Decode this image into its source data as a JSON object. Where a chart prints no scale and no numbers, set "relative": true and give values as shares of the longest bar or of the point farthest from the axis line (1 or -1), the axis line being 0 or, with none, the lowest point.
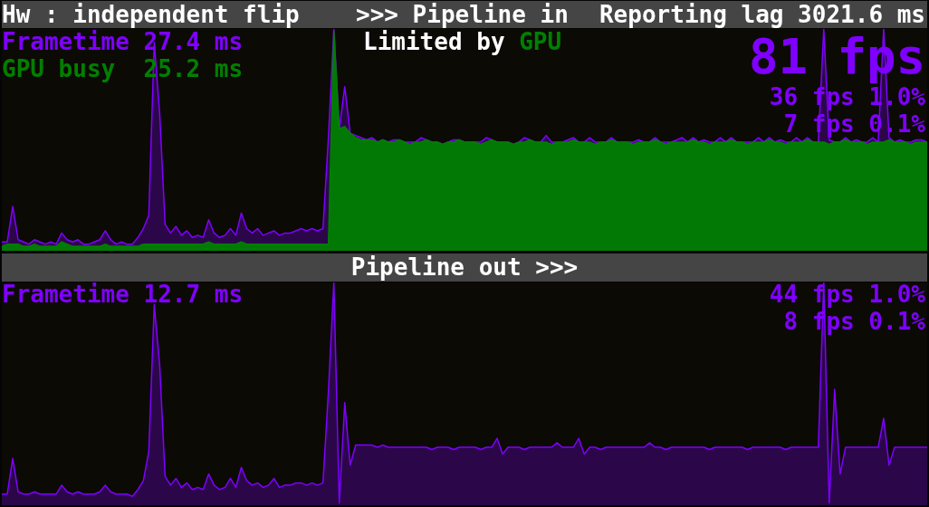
{
  "chart_data": [
    {
      "type": "area",
      "title": ">>> Pipeline in",
      "annotations": [
        "Hw : independent flip",
        "Reporting lag 3021.6 ms",
        "Frametime 27.4 ms",
        "GPU busy  25.2 ms",
        "Limited by GPU",
        "81 fps",
        "36 fps 1.0%",
        "7 fps 0.1%"
      ],
      "relative": true,
      "tick_labels": false,
      "categories": [
        null,
        null,
        null,
        null,
        null,
        null,
        null,
        null,
        null,
        null,
        null,
        null,
        null,
        null,
        null,
        null,
        null,
        null,
        null,
        null,
        null,
        null,
        null,
        null,
        null,
        null,
        null,
        null,
        null,
        null,
        null,
        null,
        null,
        null,
        null,
        null,
        null,
        null,
        null,
        null,
        null,
        null,
        null,
        null,
        null,
        null,
        null,
        null,
        null,
        null,
        null,
        null,
        null,
        null,
        null,
        null,
        null,
        null,
        null,
        null,
        null,
        null,
        null,
        null,
        null,
        null,
        null,
        null,
        null,
        null,
        null,
        null,
        null,
        null,
        null,
        null,
        null,
        null,
        null,
        null,
        null,
        null,
        null,
        null,
        null,
        null,
        null,
        null,
        null,
        null,
        null,
        null,
        null,
        null,
        null,
        null,
        null,
        null,
        null,
        null,
        null,
        null,
        null,
        null,
        null,
        null,
        null,
        null,
        null,
        null,
        null,
        null,
        null,
        null,
        null,
        null,
        null,
        null,
        null,
        null,
        null,
        null,
        null,
        null,
        null,
        null,
        null,
        null,
        null,
        null,
        null,
        null,
        null,
        null,
        null,
        null,
        null,
        null,
        null,
        null,
        null,
        null,
        null,
        null,
        null,
        null,
        null,
        null,
        null,
        null,
        null,
        null,
        null,
        null,
        null,
        null,
        null,
        null,
        null,
        null,
        null,
        null,
        null,
        null,
        null,
        null,
        null,
        null,
        null,
        null,
        null
      ],
      "series": [
        {
          "color": "#7f00ff",
          "values": [
            0.04,
            0.04,
            0.2,
            0.05,
            0.04,
            0.03,
            0.05,
            0.04,
            0.03,
            0.04,
            0.03,
            0.08,
            0.05,
            0.04,
            0.05,
            0.03,
            0.03,
            0.04,
            0.05,
            0.09,
            0.05,
            0.03,
            0.04,
            0.03,
            0.03,
            0.06,
            0.1,
            0.16,
            0.94,
            0.62,
            0.12,
            0.08,
            0.11,
            0.07,
            0.09,
            0.06,
            0.07,
            0.06,
            0.14,
            0.08,
            0.06,
            0.07,
            0.1,
            0.07,
            0.17,
            0.1,
            0.08,
            0.1,
            0.07,
            0.08,
            0.09,
            0.07,
            0.08,
            0.08,
            0.09,
            0.1,
            0.09,
            0.1,
            0.09,
            0.1,
            0.51,
            1,
            0.55,
            0.74,
            0.53,
            0.52,
            0.51,
            0.5,
            0.51,
            0.49,
            0.5,
            0.49,
            0.5,
            0.5,
            0.49,
            0.49,
            0.49,
            0.51,
            0.5,
            0.49,
            0.49,
            0.48,
            0.49,
            0.5,
            0.5,
            0.49,
            0.49,
            0.49,
            0.49,
            0.51,
            0.5,
            0.49,
            0.49,
            0.49,
            0.48,
            0.49,
            0.51,
            0.5,
            0.49,
            0.49,
            0.52,
            0.49,
            0.49,
            0.49,
            0.5,
            0.51,
            0.49,
            0.49,
            0.51,
            0.49,
            0.49,
            0.49,
            0.51,
            0.49,
            0.49,
            0.49,
            0.49,
            0.5,
            0.49,
            0.49,
            0.51,
            0.49,
            0.49,
            0.49,
            0.5,
            0.51,
            0.49,
            0.51,
            0.49,
            0.5,
            0.49,
            0.49,
            0.51,
            0.49,
            0.51,
            0.49,
            0.49,
            0.49,
            0.49,
            0.51,
            0.49,
            0.51,
            0.49,
            0.5,
            0.49,
            0.49,
            0.51,
            0.49,
            0.51,
            0.49,
            0.49,
            1,
            0.5,
            0.49,
            0.49,
            0.51,
            0.49,
            0.5,
            0.49,
            0.49,
            0.51,
            0.49,
            1,
            0.51,
            0.49,
            0.5,
            0.49,
            0.49,
            0.5,
            0.5,
            0.49
          ]
        },
        {
          "color": "#008000",
          "values": [
            0.02,
            0.03,
            0.03,
            0.03,
            0.02,
            0.02,
            0.03,
            0.02,
            0.02,
            0.02,
            0.02,
            0.04,
            0.03,
            0.02,
            0.02,
            0.02,
            0.02,
            0.02,
            0.02,
            0.03,
            0.02,
            0.02,
            0.02,
            0.02,
            0.02,
            0.02,
            0.03,
            0.03,
            0.03,
            0.03,
            0.03,
            0.03,
            0.03,
            0.03,
            0.03,
            0.03,
            0.03,
            0.03,
            0.04,
            0.03,
            0.03,
            0.03,
            0.03,
            0.03,
            0.04,
            0.03,
            0.03,
            0.03,
            0.03,
            0.03,
            0.03,
            0.03,
            0.03,
            0.03,
            0.03,
            0.03,
            0.03,
            0.03,
            0.03,
            0.03,
            0.03,
            0.99,
            0.55,
            0.56,
            0.53,
            0.51,
            0.5,
            0.5,
            0.5,
            0.49,
            0.5,
            0.49,
            0.49,
            0.5,
            0.49,
            0.48,
            0.49,
            0.49,
            0.5,
            0.49,
            0.49,
            0.48,
            0.49,
            0.49,
            0.5,
            0.49,
            0.49,
            0.49,
            0.48,
            0.49,
            0.5,
            0.49,
            0.49,
            0.49,
            0.48,
            0.49,
            0.49,
            0.5,
            0.49,
            0.49,
            0.49,
            0.48,
            0.49,
            0.49,
            0.49,
            0.5,
            0.49,
            0.49,
            0.49,
            0.48,
            0.49,
            0.49,
            0.5,
            0.49,
            0.49,
            0.49,
            0.48,
            0.49,
            0.49,
            0.49,
            0.5,
            0.49,
            0.48,
            0.49,
            0.49,
            0.49,
            0.49,
            0.5,
            0.49,
            0.49,
            0.48,
            0.49,
            0.49,
            0.49,
            0.5,
            0.49,
            0.49,
            0.48,
            0.49,
            0.49,
            0.49,
            0.5,
            0.49,
            0.49,
            0.48,
            0.49,
            0.49,
            0.49,
            0.5,
            0.49,
            0.49,
            0.49,
            0.48,
            0.49,
            0.49,
            0.5,
            0.49,
            0.49,
            0.49,
            0.48,
            0.49,
            0.49,
            0.49,
            0.5,
            0.49,
            0.49,
            0.49,
            0.48,
            0.49,
            0.49,
            0.49
          ]
        }
      ]
    },
    {
      "type": "area",
      "title": "Pipeline out >>>",
      "annotations": [
        "Frametime 12.7 ms",
        "44 fps 1.0%",
        "8 fps 0.1%"
      ],
      "relative": true,
      "tick_labels": false,
      "categories": [
        null,
        null,
        null,
        null,
        null,
        null,
        null,
        null,
        null,
        null,
        null,
        null,
        null,
        null,
        null,
        null,
        null,
        null,
        null,
        null,
        null,
        null,
        null,
        null,
        null,
        null,
        null,
        null,
        null,
        null,
        null,
        null,
        null,
        null,
        null,
        null,
        null,
        null,
        null,
        null,
        null,
        null,
        null,
        null,
        null,
        null,
        null,
        null,
        null,
        null,
        null,
        null,
        null,
        null,
        null,
        null,
        null,
        null,
        null,
        null,
        null,
        null,
        null,
        null,
        null,
        null,
        null,
        null,
        null,
        null,
        null,
        null,
        null,
        null,
        null,
        null,
        null,
        null,
        null,
        null,
        null,
        null,
        null,
        null,
        null,
        null,
        null,
        null,
        null,
        null,
        null,
        null,
        null,
        null,
        null,
        null,
        null,
        null,
        null,
        null,
        null,
        null,
        null,
        null,
        null,
        null,
        null,
        null,
        null,
        null,
        null,
        null,
        null,
        null,
        null,
        null,
        null,
        null,
        null,
        null,
        null,
        null,
        null,
        null,
        null,
        null,
        null,
        null,
        null,
        null,
        null,
        null,
        null,
        null,
        null,
        null,
        null,
        null,
        null,
        null,
        null,
        null,
        null,
        null,
        null,
        null,
        null,
        null,
        null,
        null,
        null,
        null,
        null,
        null,
        null,
        null,
        null,
        null,
        null,
        null,
        null,
        null,
        null,
        null,
        null,
        null,
        null,
        null,
        null,
        null,
        null
      ],
      "series": [
        {
          "color": "#7f00ff",
          "values": [
            0.05,
            0.05,
            0.21,
            0.06,
            0.05,
            0.05,
            0.06,
            0.05,
            0.05,
            0.05,
            0.05,
            0.09,
            0.06,
            0.05,
            0.06,
            0.05,
            0.05,
            0.05,
            0.06,
            0.09,
            0.06,
            0.05,
            0.05,
            0.05,
            0.04,
            0.07,
            0.11,
            0.24,
            0.9,
            0.63,
            0.13,
            0.09,
            0.12,
            0.08,
            0.1,
            0.07,
            0.08,
            0.07,
            0.14,
            0.09,
            0.07,
            0.08,
            0.12,
            0.08,
            0.17,
            0.11,
            0.09,
            0.1,
            0.08,
            0.09,
            0.12,
            0.08,
            0.09,
            0.09,
            0.1,
            0.1,
            0.09,
            0.1,
            0.09,
            0.1,
            0.51,
            1,
            0.01,
            0.46,
            0.18,
            0.27,
            0.27,
            0.27,
            0.27,
            0.26,
            0.27,
            0.26,
            0.26,
            0.26,
            0.26,
            0.26,
            0.26,
            0.26,
            0.26,
            0.25,
            0.26,
            0.26,
            0.26,
            0.25,
            0.26,
            0.26,
            0.26,
            0.26,
            0.25,
            0.26,
            0.26,
            0.3,
            0.23,
            0.26,
            0.26,
            0.26,
            0.25,
            0.26,
            0.26,
            0.26,
            0.26,
            0.26,
            0.28,
            0.26,
            0.26,
            0.26,
            0.3,
            0.23,
            0.26,
            0.26,
            0.25,
            0.26,
            0.26,
            0.26,
            0.26,
            0.26,
            0.26,
            0.26,
            0.26,
            0.28,
            0.26,
            0.26,
            0.25,
            0.26,
            0.26,
            0.26,
            0.26,
            0.26,
            0.26,
            0.26,
            0.25,
            0.26,
            0.26,
            0.26,
            0.26,
            0.26,
            0.26,
            0.25,
            0.26,
            0.26,
            0.26,
            0.26,
            0.26,
            0.26,
            0.25,
            0.26,
            0.26,
            0.26,
            0.26,
            0.26,
            0.26,
            1,
            0.01,
            0.52,
            0.14,
            0.26,
            0.26,
            0.26,
            0.26,
            0.26,
            0.26,
            0.26,
            0.39,
            0.18,
            0.26,
            0.26,
            0.26,
            0.26,
            0.26,
            0.26,
            0.26
          ]
        }
      ]
    }
  ]
}
